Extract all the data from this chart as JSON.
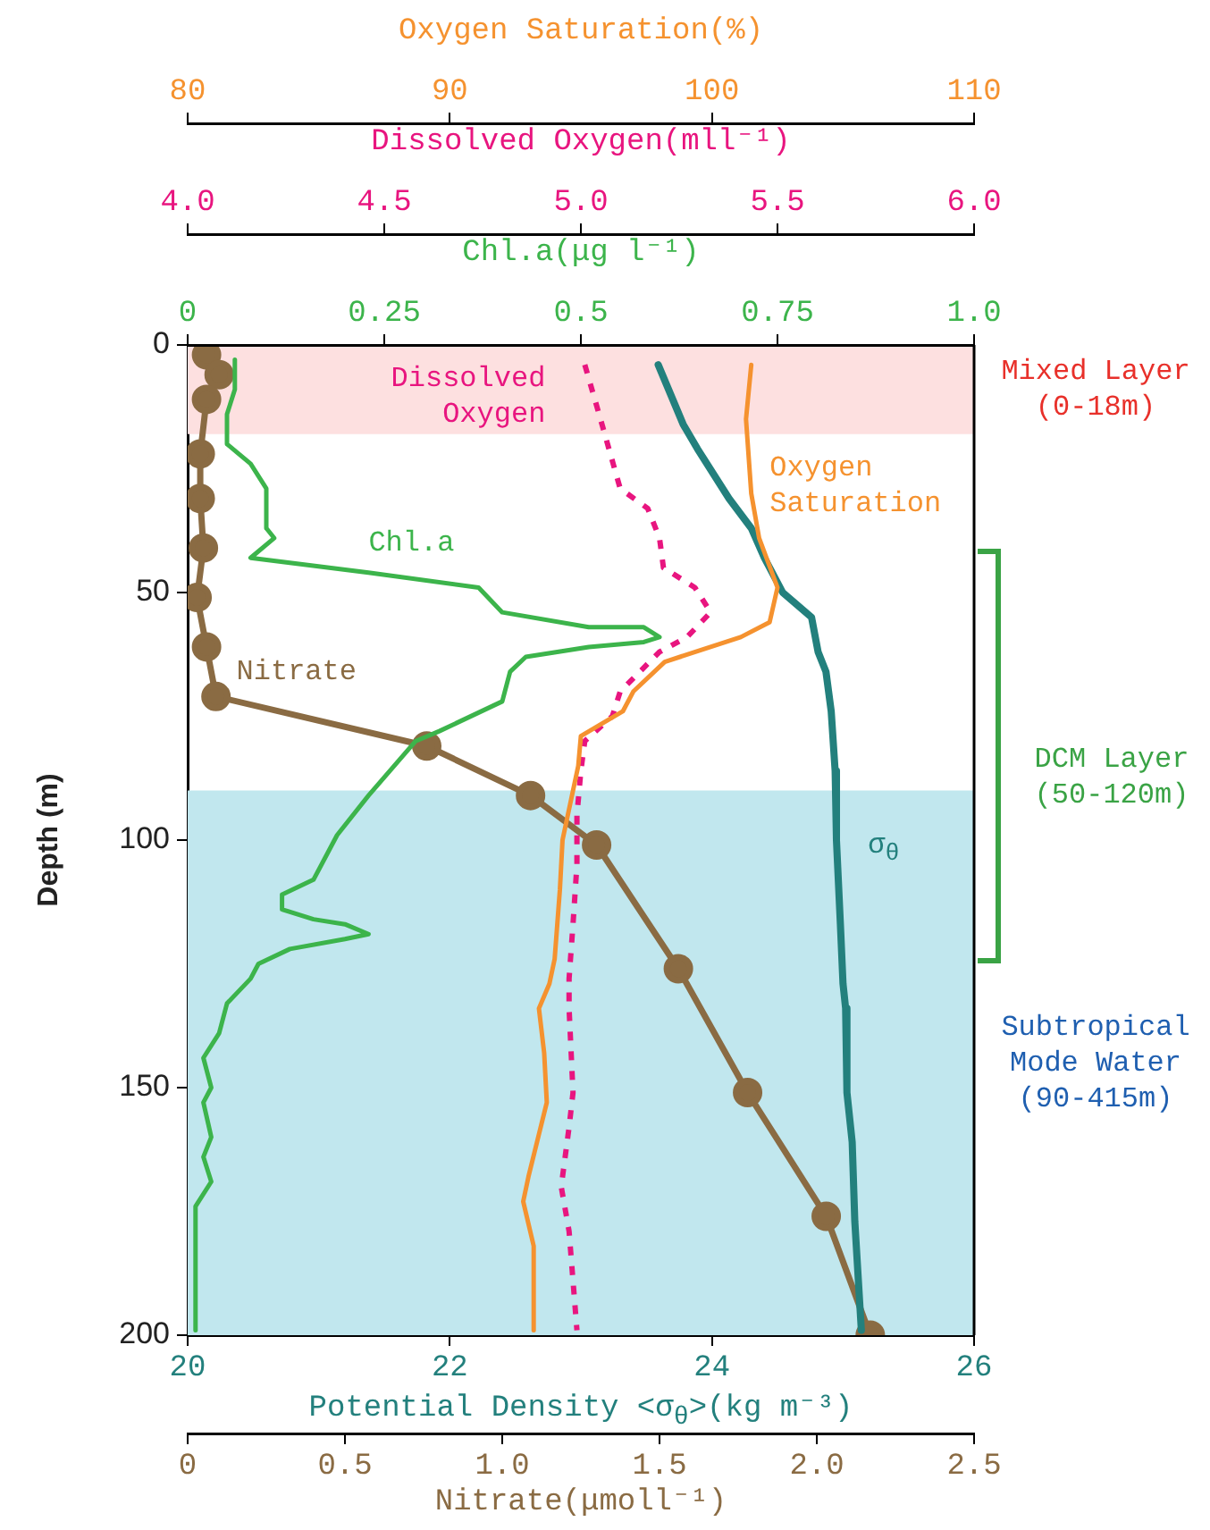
{
  "chart_data": [
    {
      "type": "line",
      "ylabel": "Depth (m)",
      "ylim": [
        200,
        0
      ],
      "yticks": [
        0,
        50,
        100,
        150,
        200
      ],
      "xlabel": "Potential Density <σ$_{θ}$>(kg m⁻³)",
      "xlim": [
        20,
        26
      ],
      "xticks": [
        20,
        22,
        24,
        26
      ],
      "x2label": "Nitrate(μmoll⁻¹)",
      "x2lim": [
        0,
        2.5
      ],
      "x2ticks": [
        0,
        0.5,
        {
          "value": 1,
          "label": "1.0"
        },
        1.5,
        {
          "value": 2,
          "label": "2.0"
        },
        2.5
      ],
      "grid": false,
      "legend": false,
      "bands": [
        {
          "axis": "y",
          "from": 0,
          "to": 18,
          "label": "Mixed Layer (0-18m)",
          "color": "#fde0e0"
        },
        {
          "axis": "y",
          "from": 90,
          "to": 200,
          "label": "Subtropical Mode Water (90-415m)",
          "color": "#c1e7ee"
        }
      ],
      "annotations": [
        "DCM Layer (50-120m)"
      ],
      "series": [
        {
          "name": "σ$_{θ}$",
          "color": "#23807d",
          "marker": "none",
          "x": [
            23.59,
            23.78,
            23.89,
            24.13,
            24.3,
            24.4,
            24.54,
            24.76,
            24.81,
            24.87,
            24.91,
            24.94,
            24.95,
            24.98,
            25,
            25.02,
            25.03,
            25.07,
            25.09,
            25.14
          ],
          "values": [
            4,
            16,
            21,
            31,
            37,
            43,
            50,
            55,
            62,
            66,
            74,
            86,
            100,
            117,
            129,
            134,
            151,
            161,
            177,
            199
          ]
        },
        {
          "name": "Nitrate",
          "color": "#8a6b43",
          "axis": "x2",
          "marker": "circle",
          "x": [
            0.06,
            0.1,
            0.06,
            0.04,
            0.04,
            0.05,
            0.03,
            0.06,
            0.09,
            0.76,
            1.09,
            1.3,
            1.56,
            1.78,
            2.03,
            2.17
          ],
          "values": [
            2,
            6,
            11,
            22,
            31,
            41,
            51,
            61,
            71,
            81,
            91,
            101,
            126,
            151,
            176,
            200
          ]
        }
      ]
    },
    {
      "type": "line",
      "ylim": [
        200,
        0
      ],
      "tick_labels": "x",
      "xlabel": "Chl.a(μg l⁻¹)",
      "xlim": [
        0,
        1
      ],
      "xticks": [
        0,
        0.25,
        0.5,
        0.75,
        {
          "value": 1,
          "label": "1.0"
        }
      ],
      "x2label": "Dissolved Oxygen(mll⁻¹)",
      "x2lim": [
        4,
        6
      ],
      "x2ticks": [
        {
          "value": 4,
          "label": "4.0"
        },
        4.5,
        {
          "value": 5,
          "label": "5.0"
        },
        5.5,
        {
          "value": 6,
          "label": "6.0"
        }
      ],
      "grid": false,
      "legend": false,
      "series": [
        {
          "name": "Chl.a",
          "color": "#3cb44b",
          "marker": "none",
          "x": [
            0.06,
            0.06,
            0.05,
            0.05,
            0.08,
            0.1,
            0.1,
            0.11,
            0.08,
            0.13,
            0.23,
            0.37,
            0.4,
            0.51,
            0.58,
            0.6,
            0.58,
            0.51,
            0.43,
            0.41,
            0.4,
            0.32,
            0.29,
            0.23,
            0.19,
            0.16,
            0.12,
            0.12,
            0.16,
            0.2,
            0.23,
            0.2,
            0.13,
            0.09,
            0.08,
            0.05,
            0.04,
            0.02,
            0.03,
            0.02,
            0.03,
            0.02,
            0.03,
            0.01,
            0.01
          ],
          "values": [
            3,
            9,
            14,
            20,
            24,
            29,
            37,
            39,
            43,
            44,
            46,
            49,
            54,
            57,
            57,
            59,
            60,
            61,
            63,
            66,
            72,
            78,
            80,
            91,
            99,
            108,
            111,
            114,
            116,
            117,
            119,
            120,
            122,
            125,
            128,
            133,
            139,
            144,
            150,
            153,
            160,
            164,
            169,
            174,
            199
          ]
        },
        {
          "name": "Dissolved Oxygen",
          "color": "#e8157f",
          "axis": "x2",
          "marker": "none",
          "line_style": "dashed",
          "x": [
            5.01,
            5.05,
            5.1,
            5.17,
            5.2,
            5.21,
            5.29,
            5.33,
            5.27,
            5.2,
            5.1,
            5.08,
            5.01,
            5,
            4.99,
            4.99,
            4.98,
            4.97,
            4.97,
            4.98,
            4.97,
            4.95,
            4.97,
            4.99
          ],
          "values": [
            4,
            15,
            29,
            33,
            39,
            45,
            49,
            54,
            59,
            62,
            70,
            75,
            80,
            86,
            95,
            105,
            117,
            128,
            134,
            151,
            158,
            170,
            179,
            199
          ]
        }
      ]
    },
    {
      "type": "line",
      "ylim": [
        200,
        0
      ],
      "tick_labels": "x",
      "xlabel": "Oxygen Saturation(%)",
      "xlim": [
        80,
        110
      ],
      "xticks": [
        80,
        90,
        100,
        110
      ],
      "grid": false,
      "legend": false,
      "series": [
        {
          "name": "Oxygen Saturation",
          "color": "#f5922f",
          "marker": "none",
          "x": [
            101.5,
            101.3,
            101.5,
            101.8,
            102.5,
            102.2,
            101.1,
            98.2,
            97,
            96.6,
            95,
            94.9,
            94.5,
            94.3,
            94.2,
            94,
            93.8,
            93.4,
            93.6,
            93.7,
            93,
            92.8,
            93.2,
            93.2
          ],
          "values": [
            4,
            15,
            30,
            39,
            49,
            56,
            59,
            64,
            70,
            74,
            79,
            85,
            95,
            100,
            110,
            124,
            129,
            134,
            143,
            153,
            168,
            173,
            182,
            199
          ]
        }
      ]
    }
  ]
}
